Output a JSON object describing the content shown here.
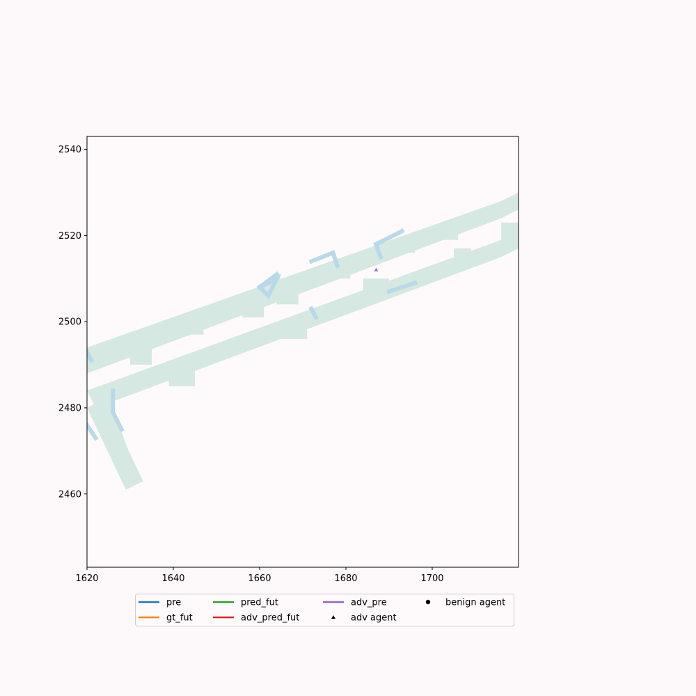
{
  "chart_data": {
    "type": "scatter",
    "title": "",
    "xlabel": "",
    "ylabel": "",
    "xlim": [
      1620,
      1720
    ],
    "ylim": [
      2443,
      2543
    ],
    "xticks": [
      1620,
      1640,
      1660,
      1680,
      1700
    ],
    "yticks": [
      2460,
      2480,
      2500,
      2520,
      2540
    ],
    "grid": false,
    "colors": {
      "background": "#fdf8fa",
      "plot_background": "#fefafc",
      "road": "#d5e8e2",
      "lane_marking": "#b8d9ea",
      "pre": "#1f77b4",
      "gt_fut": "#ff7f0e",
      "pred_fut": "#2ca02c",
      "adv_pred_fut": "#d62728",
      "adv_pre": "#9467bd",
      "adv_agent": "#000000",
      "benign_agent": "#000000",
      "adv_marker_on_map": "#8c78b4"
    },
    "road_polygons": [
      [
        [
          1620,
          2488
        ],
        [
          1716,
          2524
        ],
        [
          1720,
          2526
        ],
        [
          1720,
          2530
        ],
        [
          1716,
          2528
        ],
        [
          1620,
          2494
        ]
      ],
      [
        [
          1620,
          2484
        ],
        [
          1716,
          2519
        ],
        [
          1720,
          2521
        ],
        [
          1720,
          2517
        ],
        [
          1716,
          2515
        ],
        [
          1622,
          2480
        ]
      ],
      [
        [
          1620,
          2480
        ],
        [
          1629,
          2461
        ],
        [
          1633,
          2463
        ],
        [
          1624,
          2482
        ]
      ],
      [
        [
          1622,
          2484
        ],
        [
          1625,
          2483
        ],
        [
          1631,
          2466
        ],
        [
          1628,
          2465
        ]
      ]
    ],
    "road_pads": [
      [
        [
          1630,
          2490
        ],
        [
          1635,
          2490
        ],
        [
          1635,
          2495
        ],
        [
          1630,
          2495
        ]
      ],
      [
        [
          1642,
          2497
        ],
        [
          1647,
          2497
        ],
        [
          1647,
          2501
        ],
        [
          1642,
          2501
        ]
      ],
      [
        [
          1656,
          2501
        ],
        [
          1661,
          2501
        ],
        [
          1661,
          2505
        ],
        [
          1656,
          2505
        ]
      ],
      [
        [
          1664,
          2504
        ],
        [
          1669,
          2504
        ],
        [
          1669,
          2510
        ],
        [
          1664,
          2510
        ]
      ],
      [
        [
          1676,
          2510
        ],
        [
          1681,
          2510
        ],
        [
          1681,
          2514
        ],
        [
          1676,
          2514
        ]
      ],
      [
        [
          1690,
          2516
        ],
        [
          1696,
          2516
        ],
        [
          1696,
          2519
        ],
        [
          1690,
          2519
        ]
      ],
      [
        [
          1702,
          2519
        ],
        [
          1706,
          2519
        ],
        [
          1706,
          2523
        ],
        [
          1702,
          2523
        ]
      ],
      [
        [
          1639,
          2485
        ],
        [
          1645,
          2485
        ],
        [
          1645,
          2489
        ],
        [
          1639,
          2489
        ]
      ],
      [
        [
          1665,
          2496
        ],
        [
          1671,
          2496
        ],
        [
          1671,
          2500
        ],
        [
          1665,
          2500
        ]
      ],
      [
        [
          1684,
          2506
        ],
        [
          1690,
          2506
        ],
        [
          1690,
          2510
        ],
        [
          1684,
          2510
        ]
      ],
      [
        [
          1705,
          2513
        ],
        [
          1709,
          2513
        ],
        [
          1709,
          2517
        ],
        [
          1705,
          2517
        ]
      ],
      [
        [
          1716,
          2517
        ],
        [
          1720,
          2517
        ],
        [
          1720,
          2523
        ],
        [
          1716,
          2523
        ]
      ]
    ],
    "lane_markings": [
      [
        [
          1660,
          2508
        ],
        [
          1664,
          2510
        ],
        [
          1662,
          2506
        ],
        [
          1660,
          2508
        ]
      ],
      [
        [
          1660,
          2508
        ],
        [
          1664,
          2511
        ]
      ],
      [
        [
          1672,
          2514
        ],
        [
          1677,
          2516
        ],
        [
          1678,
          2513
        ]
      ],
      [
        [
          1687,
          2518
        ],
        [
          1693,
          2521
        ]
      ],
      [
        [
          1687,
          2518
        ],
        [
          1688,
          2515
        ]
      ],
      [
        [
          1690,
          2507
        ],
        [
          1696,
          2509
        ]
      ],
      [
        [
          1620,
          2493
        ],
        [
          1621,
          2491
        ]
      ],
      [
        [
          1620,
          2476
        ],
        [
          1622,
          2473
        ]
      ],
      [
        [
          1626,
          2484
        ],
        [
          1626,
          2479
        ],
        [
          1628,
          2475
        ]
      ],
      [
        [
          1672,
          2503
        ],
        [
          1673,
          2501
        ]
      ]
    ],
    "adv_agent": {
      "x": 1687,
      "y": 2512
    },
    "legend": {
      "placement": "lower-center",
      "entries": [
        {
          "label": "pre",
          "kind": "line",
          "color_key": "pre"
        },
        {
          "label": "gt_fut",
          "kind": "line",
          "color_key": "gt_fut"
        },
        {
          "label": "pred_fut",
          "kind": "line",
          "color_key": "pred_fut"
        },
        {
          "label": "adv_pred_fut",
          "kind": "line",
          "color_key": "adv_pred_fut"
        },
        {
          "label": "adv_pre",
          "kind": "line",
          "color_key": "adv_pre"
        },
        {
          "label": "adv agent",
          "kind": "triangle",
          "color_key": "adv_agent"
        },
        {
          "label": "benign agent",
          "kind": "circle",
          "color_key": "benign_agent"
        }
      ]
    }
  }
}
